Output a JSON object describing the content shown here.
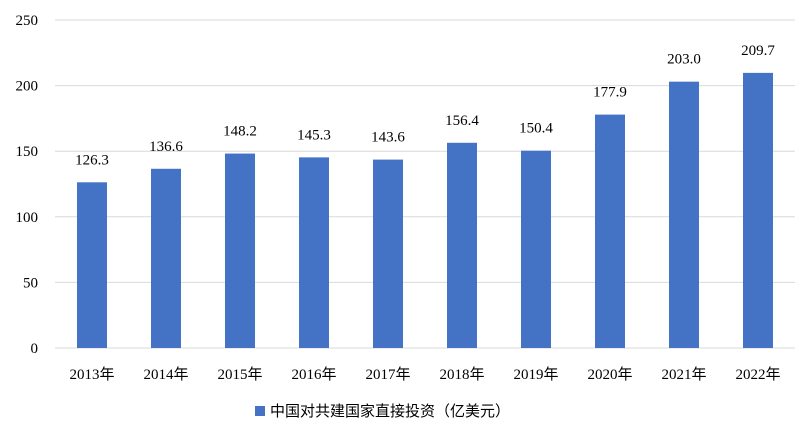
{
  "chart_data": {
    "type": "bar",
    "categories": [
      "2013年",
      "2014年",
      "2015年",
      "2016年",
      "2017年",
      "2018年",
      "2019年",
      "2020年",
      "2021年",
      "2022年"
    ],
    "series": [
      {
        "name": "中国对共建国家直接投资（亿美元）",
        "values": [
          126.3,
          136.6,
          148.2,
          145.3,
          143.6,
          156.4,
          150.4,
          177.9,
          203.0,
          209.7
        ],
        "labels": [
          "126.3",
          "136.6",
          "148.2",
          "145.3",
          "143.6",
          "156.4",
          "150.4",
          "177.9",
          "203.0",
          "209.7"
        ],
        "color": "#4472C4"
      }
    ],
    "yticks": [
      "0",
      "50",
      "100",
      "150",
      "200",
      "250"
    ],
    "ylim": [
      0,
      250
    ],
    "grid": true,
    "legend_position": "bottom",
    "title": "",
    "xlabel": "",
    "ylabel": ""
  },
  "colors": {
    "bar": "#4472C4",
    "grid": "#d9d9d9",
    "text": "#000000"
  }
}
